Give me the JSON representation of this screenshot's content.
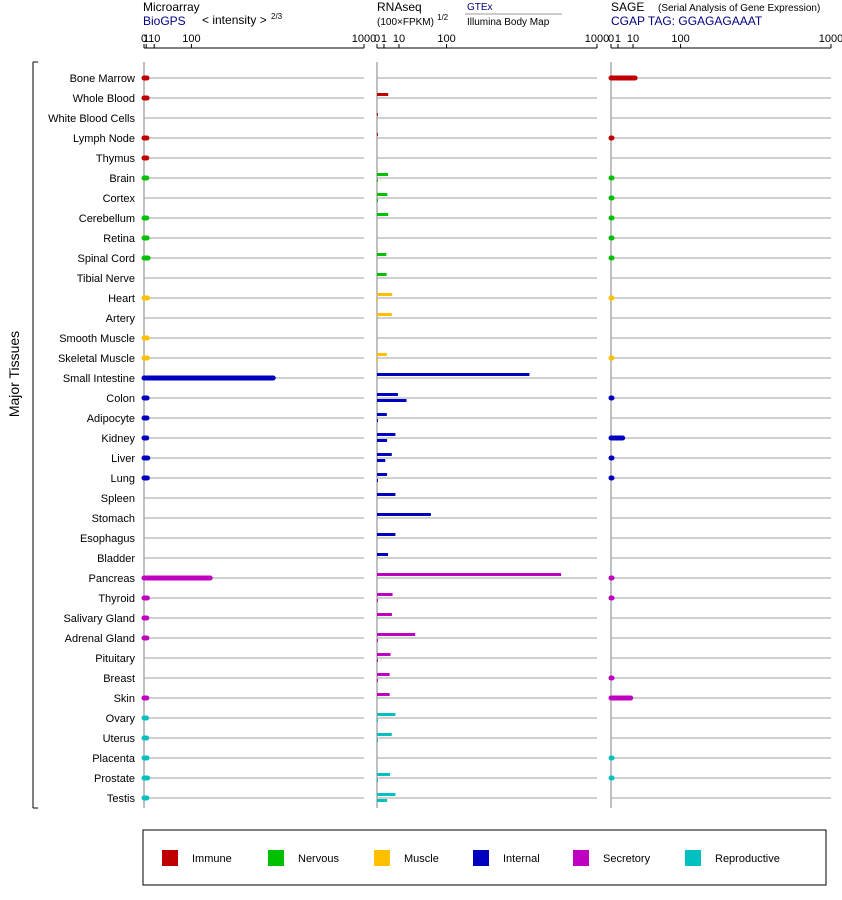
{
  "chart_data": {
    "type": "bar",
    "tissue_group_label": "Major Tissues",
    "tissues": [
      {
        "name": "Bone Marrow",
        "category": "Immune",
        "microarray": 1.6,
        "rnaseq": null,
        "rnaseq2": null,
        "sage": 12
      },
      {
        "name": "Whole Blood",
        "category": "Immune",
        "microarray": 1.7,
        "rnaseq": 2.6,
        "rnaseq2": null,
        "sage": null
      },
      {
        "name": "White Blood Cells",
        "category": "Immune",
        "microarray": null,
        "rnaseq": 0.02,
        "rnaseq2": null,
        "sage": null
      },
      {
        "name": "Lymph Node",
        "category": "Immune",
        "microarray": 1.5,
        "rnaseq": 0.02,
        "rnaseq2": null,
        "sage": 0.02
      },
      {
        "name": "Thymus",
        "category": "Immune",
        "microarray": 1.4,
        "rnaseq": null,
        "rnaseq2": null,
        "sage": null
      },
      {
        "name": "Brain",
        "category": "Nervous",
        "microarray": 1.4,
        "rnaseq": 2.5,
        "rnaseq2": 0.02,
        "sage": 0.02
      },
      {
        "name": "Cortex",
        "category": "Nervous",
        "microarray": null,
        "rnaseq": 2.2,
        "rnaseq2": 0.02,
        "sage": 0.02
      },
      {
        "name": "Cerebellum",
        "category": "Nervous",
        "microarray": 1.4,
        "rnaseq": 2.6,
        "rnaseq2": null,
        "sage": 0.02
      },
      {
        "name": "Retina",
        "category": "Nervous",
        "microarray": 1.7,
        "rnaseq": null,
        "rnaseq2": null,
        "sage": 0.02
      },
      {
        "name": "Spinal Cord",
        "category": "Nervous",
        "microarray": 2.5,
        "rnaseq": 1.8,
        "rnaseq2": null,
        "sage": 0.02
      },
      {
        "name": "Tibial Nerve",
        "category": "Nervous",
        "microarray": null,
        "rnaseq": 1.9,
        "rnaseq2": null,
        "sage": null
      },
      {
        "name": "Heart",
        "category": "Muscle",
        "microarray": 2.0,
        "rnaseq": 4.8,
        "rnaseq2": 0.02,
        "sage": 0.02
      },
      {
        "name": "Artery",
        "category": "Muscle",
        "microarray": null,
        "rnaseq": 4.5,
        "rnaseq2": null,
        "sage": null
      },
      {
        "name": "Smooth Muscle",
        "category": "Muscle",
        "microarray": 1.8,
        "rnaseq": null,
        "rnaseq2": null,
        "sage": null
      },
      {
        "name": "Skeletal Muscle",
        "category": "Muscle",
        "microarray": 1.9,
        "rnaseq": 2.0,
        "rnaseq2": 0.02,
        "sage": 0.02
      },
      {
        "name": "Small Intestine",
        "category": "Internal",
        "microarray": 450,
        "rnaseq": 480,
        "rnaseq2": null,
        "sage": null
      },
      {
        "name": "Colon",
        "category": "Internal",
        "microarray": 1.7,
        "rnaseq": 9,
        "rnaseq2": 18,
        "sage": 0.02
      },
      {
        "name": "Adipocyte",
        "category": "Internal",
        "microarray": 1.6,
        "rnaseq": 2.0,
        "rnaseq2": 0.02,
        "sage": null
      },
      {
        "name": "Kidney",
        "category": "Internal",
        "microarray": 1.4,
        "rnaseq": 7,
        "rnaseq2": 2.1,
        "sage": 2.8
      },
      {
        "name": "Liver",
        "category": "Internal",
        "microarray": 2.2,
        "rnaseq": 4.5,
        "rnaseq2": 1.4,
        "sage": 0.02
      },
      {
        "name": "Lung",
        "category": "Internal",
        "microarray": 1.9,
        "rnaseq": 2.1,
        "rnaseq2": 0.02,
        "sage": 0.02
      },
      {
        "name": "Spleen",
        "category": "Internal",
        "microarray": null,
        "rnaseq": 7,
        "rnaseq2": null,
        "sage": null
      },
      {
        "name": "Stomach",
        "category": "Internal",
        "microarray": null,
        "rnaseq": 60,
        "rnaseq2": null,
        "sage": null
      },
      {
        "name": "Esophagus",
        "category": "Internal",
        "microarray": null,
        "rnaseq": 7,
        "rnaseq2": null,
        "sage": null
      },
      {
        "name": "Bladder",
        "category": "Internal",
        "microarray": null,
        "rnaseq": 2.5,
        "rnaseq2": null,
        "sage": null
      },
      {
        "name": "Pancreas",
        "category": "Secretory",
        "microarray": 165,
        "rnaseq": 700,
        "rnaseq2": null,
        "sage": 0.02
      },
      {
        "name": "Thyroid",
        "category": "Secretory",
        "microarray": 1.9,
        "rnaseq": 5.0,
        "rnaseq2": 0.02,
        "sage": 0.02
      },
      {
        "name": "Salivary Gland",
        "category": "Secretory",
        "microarray": 1.4,
        "rnaseq": 4.6,
        "rnaseq2": null,
        "sage": null
      },
      {
        "name": "Adrenal Gland",
        "category": "Secretory",
        "microarray": 1.5,
        "rnaseq": 30,
        "rnaseq2": 0.02,
        "sage": null
      },
      {
        "name": "Pituitary",
        "category": "Secretory",
        "microarray": null,
        "rnaseq": 3.8,
        "rnaseq2": 0.02,
        "sage": null
      },
      {
        "name": "Breast",
        "category": "Secretory",
        "microarray": null,
        "rnaseq": 3.3,
        "rnaseq2": 0.02,
        "sage": 0.02
      },
      {
        "name": "Skin",
        "category": "Secretory",
        "microarray": 1.4,
        "rnaseq": 3.3,
        "rnaseq2": null,
        "sage": 8
      },
      {
        "name": "Ovary",
        "category": "Reproductive",
        "microarray": 1.2,
        "rnaseq": 7,
        "rnaseq2": 0.02,
        "sage": null
      },
      {
        "name": "Uterus",
        "category": "Reproductive",
        "microarray": 1.3,
        "rnaseq": 4.5,
        "rnaseq2": 0.02,
        "sage": null
      },
      {
        "name": "Placenta",
        "category": "Reproductive",
        "microarray": 1.6,
        "rnaseq": null,
        "rnaseq2": null,
        "sage": 0.02
      },
      {
        "name": "Prostate",
        "category": "Reproductive",
        "microarray": 2.1,
        "rnaseq": 3.5,
        "rnaseq2": 0.02,
        "sage": 0.02
      },
      {
        "name": "Testis",
        "category": "Reproductive",
        "microarray": 1.5,
        "rnaseq": 7,
        "rnaseq2": 2.1,
        "sage": null
      }
    ],
    "panels": [
      {
        "id": "microarray",
        "title": "Microarray",
        "subtitle": "BioGPS",
        "note": "< intensity >",
        "note_exp": "2/3",
        "ticks": [
          "0",
          "1",
          "10",
          "100",
          "1000"
        ]
      },
      {
        "id": "rnaseq",
        "title": "RNAseq",
        "subtitle": "(100×FPKM)",
        "subtitle_exp": "1/2",
        "source1": "GTEx",
        "source2": "Illumina Body Map",
        "ticks": [
          "0",
          "1",
          "10",
          "100",
          "1000"
        ]
      },
      {
        "id": "sage",
        "title": "SAGE",
        "subtitle": "CGAP TAG: GGAGAGAAAT",
        "note": "(Serial Analysis of Gene Expression)",
        "ticks": [
          "0",
          "1",
          "10",
          "100",
          "1000"
        ]
      }
    ],
    "x_range": [
      0,
      1000
    ],
    "scale": "power 2/3 (microarray), power 1/2 (RNAseq, SAGE)",
    "legend": [
      {
        "name": "Immune",
        "color": "#c00000"
      },
      {
        "name": "Nervous",
        "color": "#00c000"
      },
      {
        "name": "Muscle",
        "color": "#ffc000"
      },
      {
        "name": "Internal",
        "color": "#0000c0"
      },
      {
        "name": "Secretory",
        "color": "#c000c0"
      },
      {
        "name": "Reproductive",
        "color": "#00c0c0"
      }
    ],
    "legend_position": "bottom"
  }
}
